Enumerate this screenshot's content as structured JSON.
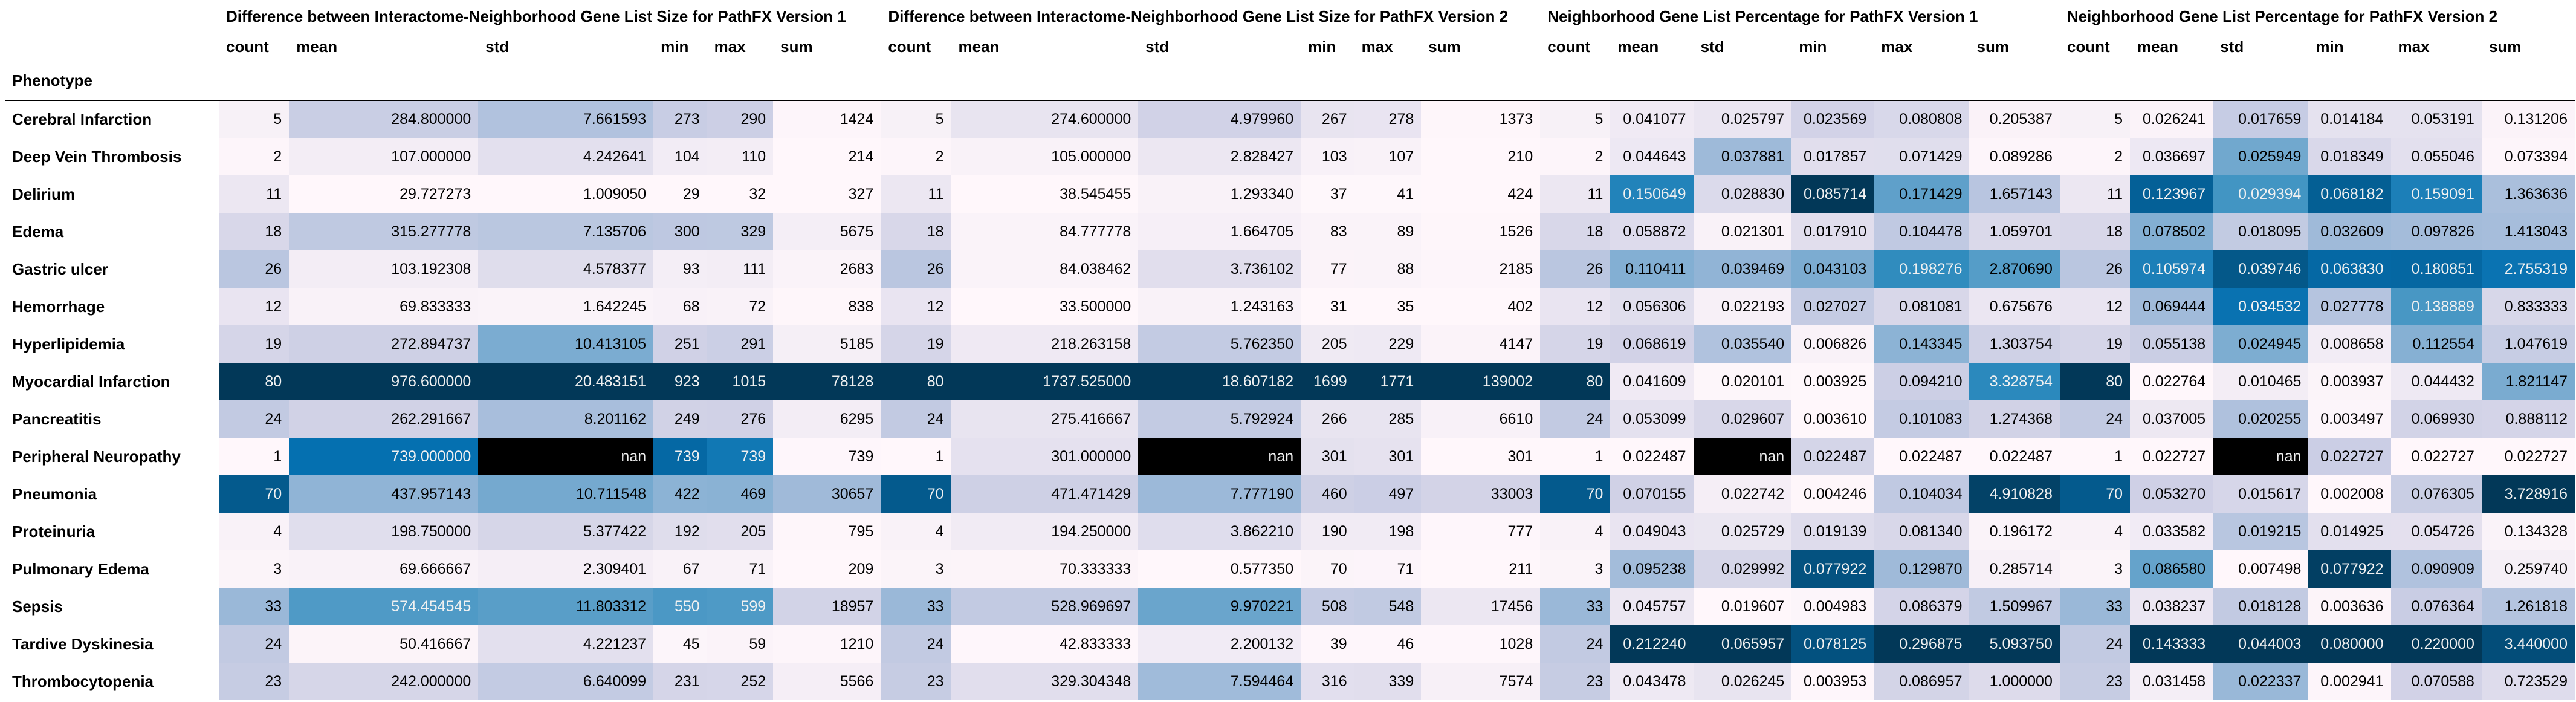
{
  "index_name": "Phenotype",
  "groups": [
    "Difference between Interactome-Neighborhood Gene List Size for PathFX Version 1",
    "Difference between Interactome-Neighborhood Gene List Size for PathFX Version 2",
    "Neighborhood Gene List Percentage for PathFX Version 1",
    "Neighborhood Gene List Percentage for PathFX Version 2"
  ],
  "stats": [
    "count",
    "mean",
    "std",
    "min",
    "max",
    "sum"
  ],
  "rows": [
    {
      "phenotype": "Cerebral Infarction",
      "values": [
        [
          "5",
          "284.800000",
          "7.661593",
          "273",
          "290",
          "1424"
        ],
        [
          "5",
          "274.600000",
          "4.979960",
          "267",
          "278",
          "1373"
        ],
        [
          "5",
          "0.041077",
          "0.025797",
          "0.023569",
          "0.080808",
          "0.205387"
        ],
        [
          "5",
          "0.026241",
          "0.017659",
          "0.014184",
          "0.053191",
          "0.131206"
        ]
      ]
    },
    {
      "phenotype": "Deep Vein Thrombosis",
      "values": [
        [
          "2",
          "107.000000",
          "4.242641",
          "104",
          "110",
          "214"
        ],
        [
          "2",
          "105.000000",
          "2.828427",
          "103",
          "107",
          "210"
        ],
        [
          "2",
          "0.044643",
          "0.037881",
          "0.017857",
          "0.071429",
          "0.089286"
        ],
        [
          "2",
          "0.036697",
          "0.025949",
          "0.018349",
          "0.055046",
          "0.073394"
        ]
      ]
    },
    {
      "phenotype": "Delirium",
      "values": [
        [
          "11",
          "29.727273",
          "1.009050",
          "29",
          "32",
          "327"
        ],
        [
          "11",
          "38.545455",
          "1.293340",
          "37",
          "41",
          "424"
        ],
        [
          "11",
          "0.150649",
          "0.028830",
          "0.085714",
          "0.171429",
          "1.657143"
        ],
        [
          "11",
          "0.123967",
          "0.029394",
          "0.068182",
          "0.159091",
          "1.363636"
        ]
      ]
    },
    {
      "phenotype": "Edema",
      "values": [
        [
          "18",
          "315.277778",
          "7.135706",
          "300",
          "329",
          "5675"
        ],
        [
          "18",
          "84.777778",
          "1.664705",
          "83",
          "89",
          "1526"
        ],
        [
          "18",
          "0.058872",
          "0.021301",
          "0.017910",
          "0.104478",
          "1.059701"
        ],
        [
          "18",
          "0.078502",
          "0.018095",
          "0.032609",
          "0.097826",
          "1.413043"
        ]
      ]
    },
    {
      "phenotype": "Gastric ulcer",
      "values": [
        [
          "26",
          "103.192308",
          "4.578377",
          "93",
          "111",
          "2683"
        ],
        [
          "26",
          "84.038462",
          "3.736102",
          "77",
          "88",
          "2185"
        ],
        [
          "26",
          "0.110411",
          "0.039469",
          "0.043103",
          "0.198276",
          "2.870690"
        ],
        [
          "26",
          "0.105974",
          "0.039746",
          "0.063830",
          "0.180851",
          "2.755319"
        ]
      ]
    },
    {
      "phenotype": "Hemorrhage",
      "values": [
        [
          "12",
          "69.833333",
          "1.642245",
          "68",
          "72",
          "838"
        ],
        [
          "12",
          "33.500000",
          "1.243163",
          "31",
          "35",
          "402"
        ],
        [
          "12",
          "0.056306",
          "0.022193",
          "0.027027",
          "0.081081",
          "0.675676"
        ],
        [
          "12",
          "0.069444",
          "0.034532",
          "0.027778",
          "0.138889",
          "0.833333"
        ]
      ]
    },
    {
      "phenotype": "Hyperlipidemia",
      "values": [
        [
          "19",
          "272.894737",
          "10.413105",
          "251",
          "291",
          "5185"
        ],
        [
          "19",
          "218.263158",
          "5.762350",
          "205",
          "229",
          "4147"
        ],
        [
          "19",
          "0.068619",
          "0.035540",
          "0.006826",
          "0.143345",
          "1.303754"
        ],
        [
          "19",
          "0.055138",
          "0.024945",
          "0.008658",
          "0.112554",
          "1.047619"
        ]
      ]
    },
    {
      "phenotype": "Myocardial Infarction",
      "values": [
        [
          "80",
          "976.600000",
          "20.483151",
          "923",
          "1015",
          "78128"
        ],
        [
          "80",
          "1737.525000",
          "18.607182",
          "1699",
          "1771",
          "139002"
        ],
        [
          "80",
          "0.041609",
          "0.020101",
          "0.003925",
          "0.094210",
          "3.328754"
        ],
        [
          "80",
          "0.022764",
          "0.010465",
          "0.003937",
          "0.044432",
          "1.821147"
        ]
      ]
    },
    {
      "phenotype": "Pancreatitis",
      "values": [
        [
          "24",
          "262.291667",
          "8.201162",
          "249",
          "276",
          "6295"
        ],
        [
          "24",
          "275.416667",
          "5.792924",
          "266",
          "285",
          "6610"
        ],
        [
          "24",
          "0.053099",
          "0.029607",
          "0.003610",
          "0.101083",
          "1.274368"
        ],
        [
          "24",
          "0.037005",
          "0.020255",
          "0.003497",
          "0.069930",
          "0.888112"
        ]
      ]
    },
    {
      "phenotype": "Peripheral Neuropathy",
      "values": [
        [
          "1",
          "739.000000",
          "nan",
          "739",
          "739",
          "739"
        ],
        [
          "1",
          "301.000000",
          "nan",
          "301",
          "301",
          "301"
        ],
        [
          "1",
          "0.022487",
          "nan",
          "0.022487",
          "0.022487",
          "0.022487"
        ],
        [
          "1",
          "0.022727",
          "nan",
          "0.022727",
          "0.022727",
          "0.022727"
        ]
      ]
    },
    {
      "phenotype": "Pneumonia",
      "values": [
        [
          "70",
          "437.957143",
          "10.711548",
          "422",
          "469",
          "30657"
        ],
        [
          "70",
          "471.471429",
          "7.777190",
          "460",
          "497",
          "33003"
        ],
        [
          "70",
          "0.070155",
          "0.022742",
          "0.004246",
          "0.104034",
          "4.910828"
        ],
        [
          "70",
          "0.053270",
          "0.015617",
          "0.002008",
          "0.076305",
          "3.728916"
        ]
      ]
    },
    {
      "phenotype": "Proteinuria",
      "values": [
        [
          "4",
          "198.750000",
          "5.377422",
          "192",
          "205",
          "795"
        ],
        [
          "4",
          "194.250000",
          "3.862210",
          "190",
          "198",
          "777"
        ],
        [
          "4",
          "0.049043",
          "0.025729",
          "0.019139",
          "0.081340",
          "0.196172"
        ],
        [
          "4",
          "0.033582",
          "0.019215",
          "0.014925",
          "0.054726",
          "0.134328"
        ]
      ]
    },
    {
      "phenotype": "Pulmonary Edema",
      "values": [
        [
          "3",
          "69.666667",
          "2.309401",
          "67",
          "71",
          "209"
        ],
        [
          "3",
          "70.333333",
          "0.577350",
          "70",
          "71",
          "211"
        ],
        [
          "3",
          "0.095238",
          "0.029992",
          "0.077922",
          "0.129870",
          "0.285714"
        ],
        [
          "3",
          "0.086580",
          "0.007498",
          "0.077922",
          "0.090909",
          "0.259740"
        ]
      ]
    },
    {
      "phenotype": "Sepsis",
      "values": [
        [
          "33",
          "574.454545",
          "11.803312",
          "550",
          "599",
          "18957"
        ],
        [
          "33",
          "528.969697",
          "9.970221",
          "508",
          "548",
          "17456"
        ],
        [
          "33",
          "0.045757",
          "0.019607",
          "0.004983",
          "0.086379",
          "1.509967"
        ],
        [
          "33",
          "0.038237",
          "0.018128",
          "0.003636",
          "0.076364",
          "1.261818"
        ]
      ]
    },
    {
      "phenotype": "Tardive Dyskinesia",
      "values": [
        [
          "24",
          "50.416667",
          "4.221237",
          "45",
          "59",
          "1210"
        ],
        [
          "24",
          "42.833333",
          "2.200132",
          "39",
          "46",
          "1028"
        ],
        [
          "24",
          "0.212240",
          "0.065957",
          "0.078125",
          "0.296875",
          "5.093750"
        ],
        [
          "24",
          "0.143333",
          "0.044003",
          "0.080000",
          "0.220000",
          "3.440000"
        ]
      ]
    },
    {
      "phenotype": "Thrombocytopenia",
      "values": [
        [
          "23",
          "242.000000",
          "6.640099",
          "231",
          "252",
          "5566"
        ],
        [
          "23",
          "329.304348",
          "7.594464",
          "316",
          "339",
          "7574"
        ],
        [
          "23",
          "0.043478",
          "0.026245",
          "0.003953",
          "0.086957",
          "1.000000"
        ],
        [
          "23",
          "0.031458",
          "0.022337",
          "0.002941",
          "0.070588",
          "0.723529"
        ]
      ]
    }
  ]
}
